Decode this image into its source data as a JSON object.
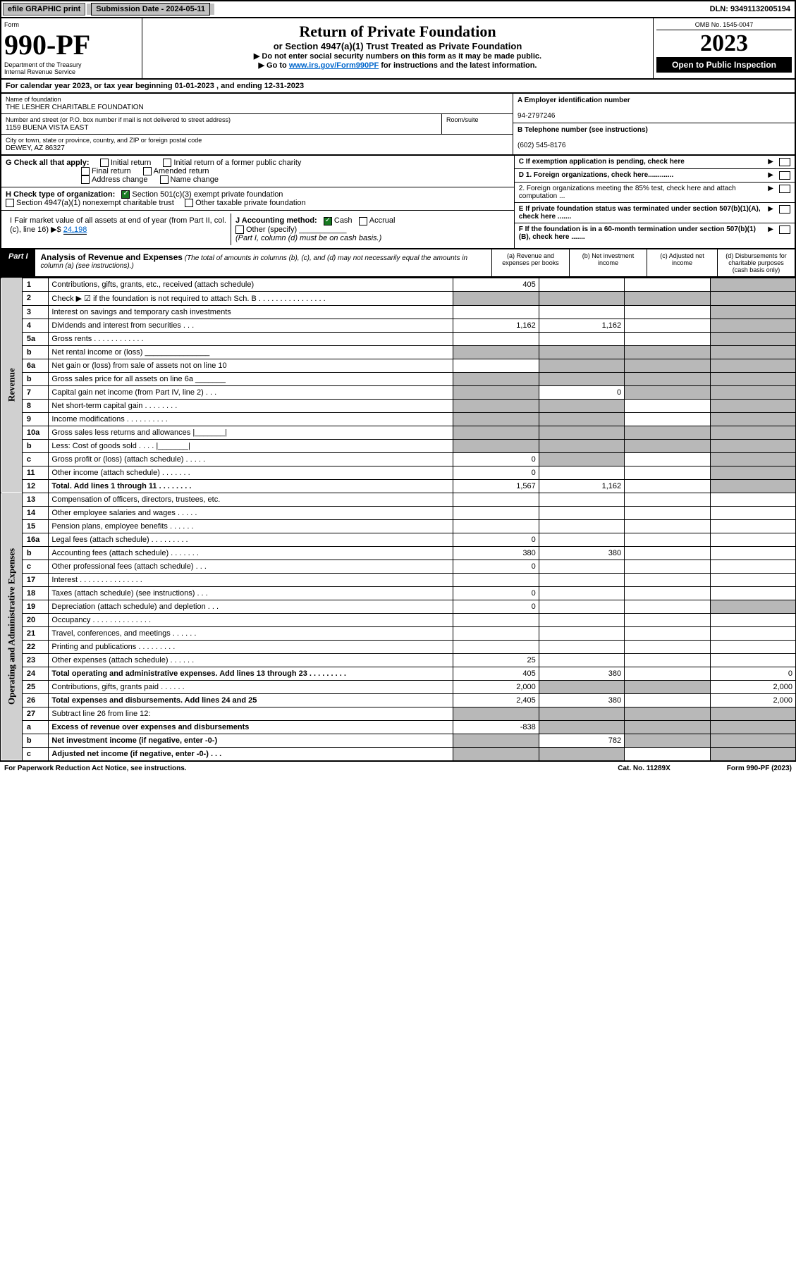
{
  "top": {
    "efile": "efile GRAPHIC print",
    "sub_date_lbl": "Submission Date - 2024-05-11",
    "dln": "DLN: 93491132005194"
  },
  "header": {
    "form_lbl": "Form",
    "form_no": "990-PF",
    "dept": "Department of the Treasury",
    "irs": "Internal Revenue Service",
    "title": "Return of Private Foundation",
    "subtitle": "or Section 4947(a)(1) Trust Treated as Private Foundation",
    "instr1": "▶ Do not enter social security numbers on this form as it may be made public.",
    "instr2_pre": "▶ Go to ",
    "instr2_link": "www.irs.gov/Form990PF",
    "instr2_post": " for instructions and the latest information.",
    "omb": "OMB No. 1545-0047",
    "year": "2023",
    "open": "Open to Public Inspection"
  },
  "cal_year": "For calendar year 2023, or tax year beginning 01-01-2023                          , and ending 12-31-2023",
  "id": {
    "name_lbl": "Name of foundation",
    "name": "THE LESHER CHARITABLE FOUNDATION",
    "addr_lbl": "Number and street (or P.O. box number if mail is not delivered to street address)",
    "addr": "1159 BUENA VISTA EAST",
    "room_lbl": "Room/suite",
    "city_lbl": "City or town, state or province, country, and ZIP or foreign postal code",
    "city": "DEWEY, AZ  86327",
    "A_lbl": "A Employer identification number",
    "A_val": "94-2797246",
    "B_lbl": "B Telephone number (see instructions)",
    "B_val": "(602) 545-8176",
    "C_lbl": "C If exemption application is pending, check here",
    "D1": "D 1. Foreign organizations, check here.............",
    "D2": "2. Foreign organizations meeting the 85% test, check here and attach computation ...",
    "E": "E  If private foundation status was terminated under section 507(b)(1)(A), check here .......",
    "F": "F  If the foundation is in a 60-month termination under section 507(b)(1)(B), check here .......",
    "G": "G Check all that apply:",
    "G_items": [
      "Initial return",
      "Initial return of a former public charity",
      "Final return",
      "Amended return",
      "Address change",
      "Name change"
    ],
    "H": "H Check type of organization:",
    "H1": "Section 501(c)(3) exempt private foundation",
    "H2": "Section 4947(a)(1) nonexempt charitable trust",
    "H3": "Other taxable private foundation",
    "I": "I Fair market value of all assets at end of year (from Part II, col. (c), line 16) ▶$ ",
    "I_val": "24,198",
    "J": "J Accounting method:",
    "J_cash": "Cash",
    "J_accrual": "Accrual",
    "J_other": "Other (specify)",
    "J_note": "(Part I, column (d) must be on cash basis.)"
  },
  "part1": {
    "lbl": "Part I",
    "title": "Analysis of Revenue and Expenses",
    "note": " (The total of amounts in columns (b), (c), and (d) may not necessarily equal the amounts in column (a) (see instructions).)",
    "cols": {
      "a": "(a) Revenue and expenses per books",
      "b": "(b) Net investment income",
      "c": "(c) Adjusted net income",
      "d": "(d) Disbursements for charitable purposes (cash basis only)"
    }
  },
  "rows": [
    {
      "no": "1",
      "desc": "Contributions, gifts, grants, etc., received (attach schedule)",
      "a": "405",
      "b": "",
      "c": "",
      "d": "shaded"
    },
    {
      "no": "2",
      "desc": "Check ▶ ☑ if the foundation is not required to attach Sch. B     .  .  .  .  .  .  .  .  .  .  .  .  .  .  .  .",
      "a": "shaded",
      "b": "shaded",
      "c": "shaded",
      "d": "shaded"
    },
    {
      "no": "3",
      "desc": "Interest on savings and temporary cash investments",
      "a": "",
      "b": "",
      "c": "",
      "d": "shaded"
    },
    {
      "no": "4",
      "desc": "Dividends and interest from securities    .   .   .",
      "a": "1,162",
      "b": "1,162",
      "c": "",
      "d": "shaded"
    },
    {
      "no": "5a",
      "desc": "Gross rents        .   .   .   .   .   .   .   .   .   .   .   .",
      "a": "",
      "b": "",
      "c": "",
      "d": "shaded"
    },
    {
      "no": "b",
      "desc": "Net rental income or (loss)  _______________",
      "a": "shaded",
      "b": "shaded",
      "c": "shaded",
      "d": "shaded"
    },
    {
      "no": "6a",
      "desc": "Net gain or (loss) from sale of assets not on line 10",
      "a": "",
      "b": "shaded",
      "c": "shaded",
      "d": "shaded"
    },
    {
      "no": "b",
      "desc": "Gross sales price for all assets on line 6a _______",
      "a": "shaded",
      "b": "shaded",
      "c": "shaded",
      "d": "shaded"
    },
    {
      "no": "7",
      "desc": "Capital gain net income (from Part IV, line 2)   .   .   .",
      "a": "shaded",
      "b": "0",
      "c": "shaded",
      "d": "shaded"
    },
    {
      "no": "8",
      "desc": "Net short-term capital gain  .   .   .   .   .   .   .   .",
      "a": "shaded",
      "b": "shaded",
      "c": "",
      "d": "shaded"
    },
    {
      "no": "9",
      "desc": "Income modifications .   .   .   .   .   .   .   .   .   .",
      "a": "shaded",
      "b": "shaded",
      "c": "",
      "d": "shaded"
    },
    {
      "no": "10a",
      "desc": "Gross sales less returns and allowances  |_______|",
      "a": "shaded",
      "b": "shaded",
      "c": "shaded",
      "d": "shaded"
    },
    {
      "no": "b",
      "desc": "Less: Cost of goods sold    .   .   .   .   |_______|",
      "a": "shaded",
      "b": "shaded",
      "c": "shaded",
      "d": "shaded"
    },
    {
      "no": "c",
      "desc": "Gross profit or (loss) (attach schedule)   .   .   .   .   .",
      "a": "0",
      "b": "shaded",
      "c": "",
      "d": "shaded"
    },
    {
      "no": "11",
      "desc": "Other income (attach schedule)  .   .   .   .   .   .   .",
      "a": "0",
      "b": "",
      "c": "",
      "d": "shaded"
    },
    {
      "no": "12",
      "desc": "Total. Add lines 1 through 11  .   .   .   .   .   .   .   .",
      "bold": true,
      "a": "1,567",
      "b": "1,162",
      "c": "",
      "d": "shaded"
    },
    {
      "no": "13",
      "desc": "Compensation of officers, directors, trustees, etc.",
      "a": "",
      "b": "",
      "c": "",
      "d": ""
    },
    {
      "no": "14",
      "desc": "Other employee salaries and wages  .   .   .   .   .",
      "a": "",
      "b": "",
      "c": "",
      "d": ""
    },
    {
      "no": "15",
      "desc": "Pension plans, employee benefits  .   .   .   .   .   .",
      "a": "",
      "b": "",
      "c": "",
      "d": ""
    },
    {
      "no": "16a",
      "desc": "Legal fees (attach schedule) .   .   .   .   .   .   .   .   .",
      "a": "0",
      "b": "",
      "c": "",
      "d": ""
    },
    {
      "no": "b",
      "desc": "Accounting fees (attach schedule) .   .   .   .   .   .   .",
      "a": "380",
      "b": "380",
      "c": "",
      "d": ""
    },
    {
      "no": "c",
      "desc": "Other professional fees (attach schedule)   .   .   .",
      "a": "0",
      "b": "",
      "c": "",
      "d": ""
    },
    {
      "no": "17",
      "desc": "Interest  .   .   .   .   .   .   .   .   .   .   .   .   .   .   .",
      "a": "",
      "b": "",
      "c": "",
      "d": ""
    },
    {
      "no": "18",
      "desc": "Taxes (attach schedule) (see instructions)    .   .   .",
      "a": "0",
      "b": "",
      "c": "",
      "d": ""
    },
    {
      "no": "19",
      "desc": "Depreciation (attach schedule) and depletion   .   .   .",
      "a": "0",
      "b": "",
      "c": "",
      "d": "shaded"
    },
    {
      "no": "20",
      "desc": "Occupancy .   .   .   .   .   .   .   .   .   .   .   .   .   .",
      "a": "",
      "b": "",
      "c": "",
      "d": ""
    },
    {
      "no": "21",
      "desc": "Travel, conferences, and meetings .   .   .   .   .   .",
      "a": "",
      "b": "",
      "c": "",
      "d": ""
    },
    {
      "no": "22",
      "desc": "Printing and publications .   .   .   .   .   .   .   .   .",
      "a": "",
      "b": "",
      "c": "",
      "d": ""
    },
    {
      "no": "23",
      "desc": "Other expenses (attach schedule) .   .   .   .   .   .",
      "a": "25",
      "b": "",
      "c": "",
      "d": ""
    },
    {
      "no": "24",
      "desc": "Total operating and administrative expenses. Add lines 13 through 23  .   .   .   .   .   .   .   .   .",
      "bold": true,
      "a": "405",
      "b": "380",
      "c": "",
      "d": "0"
    },
    {
      "no": "25",
      "desc": "Contributions, gifts, grants paid    .   .   .   .   .   .",
      "a": "2,000",
      "b": "shaded",
      "c": "shaded",
      "d": "2,000"
    },
    {
      "no": "26",
      "desc": "Total expenses and disbursements. Add lines 24 and 25",
      "bold": true,
      "a": "2,405",
      "b": "380",
      "c": "",
      "d": "2,000"
    },
    {
      "no": "27",
      "desc": "Subtract line 26 from line 12:",
      "a": "shaded",
      "b": "shaded",
      "c": "shaded",
      "d": "shaded"
    },
    {
      "no": "a",
      "desc": "Excess of revenue over expenses and disbursements",
      "bold": true,
      "a": "-838",
      "b": "shaded",
      "c": "shaded",
      "d": "shaded"
    },
    {
      "no": "b",
      "desc": "Net investment income (if negative, enter -0-)",
      "bold": true,
      "a": "shaded",
      "b": "782",
      "c": "shaded",
      "d": "shaded"
    },
    {
      "no": "c",
      "desc": "Adjusted net income (if negative, enter -0-)   .   .   .",
      "bold": true,
      "a": "shaded",
      "b": "shaded",
      "c": "",
      "d": "shaded"
    }
  ],
  "sections": {
    "revenue": "Revenue",
    "expenses": "Operating and Administrative Expenses"
  },
  "footer": {
    "left": "For Paperwork Reduction Act Notice, see instructions.",
    "mid": "Cat. No. 11289X",
    "right": "Form 990-PF (2023)"
  }
}
